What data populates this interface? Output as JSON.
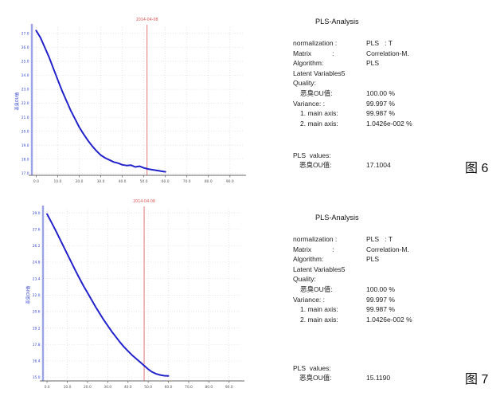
{
  "colors": {
    "curve": "#2222cc",
    "marker_line": "#e07878",
    "marker_text": "#e05555",
    "axis_y": "#9aa3e6",
    "axis_x": "#666666",
    "grid": "#e3d6d6",
    "tick_text": "#555555",
    "ytick_text": "#3344cc",
    "result_text": "#2233cc"
  },
  "figure6": {
    "caption": "图 6",
    "analysis": {
      "title": "PLS-Analysis",
      "rows": [
        {
          "label": "normalization :",
          "value": "PLS   : T",
          "indent": false
        },
        {
          "label": "Matrix           :",
          "value": "Correlation-M.",
          "indent": false
        },
        {
          "label": "Algorithm:",
          "value": "PLS",
          "indent": false
        },
        {
          "label": "Latent Variables5",
          "value": "",
          "indent": false
        },
        {
          "label": "Quality:",
          "value": "",
          "indent": false
        },
        {
          "label": "恶臭OU值:",
          "value": "100.00 %",
          "indent": true
        },
        {
          "label": "Variance: :",
          "value": "99.997 %",
          "indent": false
        },
        {
          "label": "1. main axis:",
          "value": "99.987 %",
          "indent": true
        },
        {
          "label": "2. main axis:",
          "value": "1.0426e-002 %",
          "indent": true
        }
      ],
      "values_heading": "PLS  values:",
      "result_label": "恶臭OU值:",
      "result_value": "17.1004"
    }
  },
  "figure7": {
    "caption": "图 7",
    "analysis": {
      "title": "PLS-Analysis",
      "rows": [
        {
          "label": "normalization :",
          "value": "PLS   : T",
          "indent": false
        },
        {
          "label": "Matrix           :",
          "value": "Correlation-M.",
          "indent": false
        },
        {
          "label": "Algorithm:",
          "value": "PLS",
          "indent": false
        },
        {
          "label": "Latent Variables5",
          "value": "",
          "indent": false
        },
        {
          "label": "Quality:",
          "value": "",
          "indent": false
        },
        {
          "label": "恶臭OU值:",
          "value": "100.00 %",
          "indent": true
        },
        {
          "label": "Variance: :",
          "value": "99.997 %",
          "indent": false
        },
        {
          "label": "1. main axis:",
          "value": "99.987 %",
          "indent": true
        },
        {
          "label": "2. main axis:",
          "value": "1.0426e-002 %",
          "indent": true
        }
      ],
      "values_heading": "PLS  values:",
      "result_label": "恶臭OU值:",
      "result_value": "15.1190"
    }
  },
  "chart_data": [
    {
      "type": "line",
      "title": "",
      "xlabel": "",
      "ylabel": "恶臭OU值",
      "grid": true,
      "legend": "none",
      "xlim": [
        -2,
        96
      ],
      "ylim": [
        16.85,
        27.45
      ],
      "x_ticks": [
        "0.0",
        "10.0",
        "20.0",
        "30.0",
        "40.0",
        "50.0",
        "60.0",
        "70.0",
        "80.0",
        "90.0"
      ],
      "y_ticks": [
        "27.0",
        "26.0",
        "25.0",
        "24.0",
        "23.0",
        "22.0",
        "21.0",
        "20.0",
        "19.0",
        "18.0",
        "17.0"
      ],
      "marker": {
        "x": 51.5,
        "label": "2014-04-08"
      },
      "series": [
        {
          "name": "恶臭OU值",
          "x": [
            0,
            2,
            4,
            6,
            8,
            10,
            12,
            14,
            16,
            18,
            20,
            22,
            24,
            26,
            28,
            30,
            32,
            34,
            36,
            38,
            40,
            42,
            44,
            46,
            48,
            50,
            52,
            54,
            56,
            58,
            60
          ],
          "y": [
            27.2,
            26.7,
            26.0,
            25.3,
            24.5,
            23.7,
            22.9,
            22.2,
            21.5,
            20.9,
            20.3,
            19.8,
            19.35,
            18.95,
            18.6,
            18.3,
            18.1,
            17.95,
            17.8,
            17.72,
            17.6,
            17.55,
            17.58,
            17.45,
            17.5,
            17.38,
            17.3,
            17.25,
            17.2,
            17.15,
            17.1
          ]
        }
      ]
    },
    {
      "type": "line",
      "title": "",
      "xlabel": "",
      "ylabel": "恶臭OU值",
      "grid": true,
      "legend": "none",
      "xlim": [
        -2,
        96
      ],
      "ylim": [
        14.7,
        29.35
      ],
      "x_ticks": [
        "0.0",
        "10.0",
        "20.0",
        "30.0",
        "40.0",
        "50.0",
        "60.0",
        "70.0",
        "80.0",
        "90.0"
      ],
      "y_ticks": [
        "29.0",
        "27.6",
        "26.2",
        "24.8",
        "23.4",
        "22.0",
        "20.6",
        "19.2",
        "17.8",
        "16.4",
        "15.0"
      ],
      "marker": {
        "x": 48,
        "label": "2014-04-08"
      },
      "series": [
        {
          "name": "恶臭OU值",
          "x": [
            0,
            2,
            4,
            6,
            8,
            10,
            12,
            14,
            16,
            18,
            20,
            22,
            24,
            26,
            28,
            30,
            32,
            34,
            36,
            38,
            40,
            42,
            44,
            46,
            48,
            50,
            52,
            54,
            56,
            58,
            60
          ],
          "y": [
            28.9,
            28.25,
            27.6,
            26.9,
            26.2,
            25.5,
            24.8,
            24.1,
            23.45,
            22.8,
            22.2,
            21.6,
            21.0,
            20.45,
            19.9,
            19.4,
            18.9,
            18.45,
            18.0,
            17.6,
            17.25,
            16.9,
            16.6,
            16.3,
            16.0,
            15.7,
            15.45,
            15.3,
            15.2,
            15.14,
            15.12
          ]
        }
      ]
    }
  ]
}
